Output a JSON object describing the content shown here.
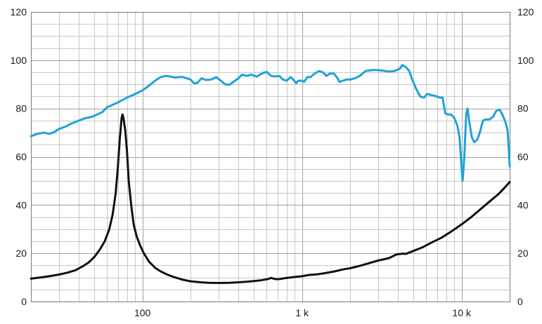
{
  "chart_data": {
    "type": "line",
    "title": "",
    "xlabel": "",
    "ylabel": "",
    "x_scale": "log",
    "xlim": [
      20,
      20000
    ],
    "ylim": [
      0,
      120
    ],
    "grid": true,
    "legend": "none",
    "x_tick_labels": [
      {
        "value": 100,
        "label": "100"
      },
      {
        "value": 1000,
        "label": "1 k"
      },
      {
        "value": 10000,
        "label": "10 k"
      }
    ],
    "y_ticks": [
      0,
      20,
      40,
      60,
      80,
      100,
      120
    ],
    "y_tick_labels": [
      "0",
      "20",
      "40",
      "60",
      "80",
      "100",
      "120"
    ],
    "series": [
      {
        "color": "#1fa3d6",
        "points": [
          [
            20,
            68.5
          ],
          [
            22,
            69.5
          ],
          [
            24,
            70
          ],
          [
            26,
            69.5
          ],
          [
            28,
            70.2
          ],
          [
            30,
            71.5
          ],
          [
            33,
            72.5
          ],
          [
            36,
            73.8
          ],
          [
            40,
            75
          ],
          [
            44,
            76
          ],
          [
            48,
            76.5
          ],
          [
            52,
            77.5
          ],
          [
            56,
            78.5
          ],
          [
            60,
            80.5
          ],
          [
            65,
            81.5
          ],
          [
            70,
            82.5
          ],
          [
            75,
            83.5
          ],
          [
            80,
            84.5
          ],
          [
            90,
            86
          ],
          [
            100,
            87.5
          ],
          [
            110,
            89.5
          ],
          [
            120,
            91.5
          ],
          [
            130,
            93
          ],
          [
            140,
            93.5
          ],
          [
            150,
            93.2
          ],
          [
            160,
            92.8
          ],
          [
            170,
            93
          ],
          [
            180,
            93
          ],
          [
            200,
            92
          ],
          [
            210,
            90.5
          ],
          [
            220,
            90.5
          ],
          [
            235,
            92.5
          ],
          [
            250,
            91.8
          ],
          [
            270,
            92
          ],
          [
            290,
            93
          ],
          [
            310,
            91.5
          ],
          [
            330,
            90
          ],
          [
            350,
            89.8
          ],
          [
            380,
            91.5
          ],
          [
            400,
            92.5
          ],
          [
            420,
            94
          ],
          [
            450,
            93.5
          ],
          [
            480,
            94
          ],
          [
            520,
            93.2
          ],
          [
            560,
            94.5
          ],
          [
            600,
            95.2
          ],
          [
            640,
            93.5
          ],
          [
            680,
            93.2
          ],
          [
            720,
            93.5
          ],
          [
            760,
            92
          ],
          [
            800,
            91.5
          ],
          [
            850,
            93
          ],
          [
            880,
            92
          ],
          [
            920,
            90.5
          ],
          [
            950,
            91.5
          ],
          [
            1000,
            91.5
          ],
          [
            1030,
            91
          ],
          [
            1080,
            93
          ],
          [
            1130,
            93
          ],
          [
            1200,
            94.5
          ],
          [
            1280,
            95.5
          ],
          [
            1350,
            95
          ],
          [
            1420,
            93.5
          ],
          [
            1500,
            94.5
          ],
          [
            1580,
            94.5
          ],
          [
            1650,
            93
          ],
          [
            1720,
            91
          ],
          [
            1800,
            91.5
          ],
          [
            1900,
            92
          ],
          [
            2000,
            92
          ],
          [
            2150,
            92.5
          ],
          [
            2300,
            93.5
          ],
          [
            2500,
            95.5
          ],
          [
            2800,
            96
          ],
          [
            3100,
            95.8
          ],
          [
            3500,
            95.3
          ],
          [
            3800,
            95.5
          ],
          [
            4100,
            96.5
          ],
          [
            4250,
            98
          ],
          [
            4500,
            97
          ],
          [
            4700,
            95.5
          ],
          [
            4900,
            92
          ],
          [
            5200,
            88
          ],
          [
            5500,
            85
          ],
          [
            5800,
            84.5
          ],
          [
            6100,
            86
          ],
          [
            6500,
            85.5
          ],
          [
            7000,
            85
          ],
          [
            7300,
            84.5
          ],
          [
            7600,
            84.5
          ],
          [
            7900,
            78
          ],
          [
            8200,
            77.5
          ],
          [
            8600,
            77.5
          ],
          [
            9000,
            76
          ],
          [
            9400,
            73
          ],
          [
            9700,
            68
          ],
          [
            9950,
            57
          ],
          [
            10150,
            50
          ],
          [
            10400,
            60
          ],
          [
            10700,
            78
          ],
          [
            10900,
            80
          ],
          [
            11200,
            74
          ],
          [
            11600,
            68
          ],
          [
            12000,
            66
          ],
          [
            12500,
            67
          ],
          [
            13000,
            70
          ],
          [
            13600,
            75
          ],
          [
            14200,
            75.5
          ],
          [
            15000,
            75.5
          ],
          [
            15700,
            76.5
          ],
          [
            16500,
            79
          ],
          [
            17300,
            79.5
          ],
          [
            18000,
            77.5
          ],
          [
            18800,
            74.5
          ],
          [
            19400,
            71
          ],
          [
            19800,
            62
          ],
          [
            20000,
            56
          ]
        ]
      },
      {
        "color": "#111111",
        "points": [
          [
            20,
            9.5
          ],
          [
            23,
            10
          ],
          [
            26,
            10.5
          ],
          [
            30,
            11.2
          ],
          [
            34,
            12
          ],
          [
            38,
            13
          ],
          [
            42,
            14.5
          ],
          [
            46,
            16.2
          ],
          [
            50,
            18.5
          ],
          [
            54,
            21.5
          ],
          [
            58,
            25
          ],
          [
            62,
            30
          ],
          [
            65,
            36
          ],
          [
            68,
            45
          ],
          [
            70,
            55
          ],
          [
            72,
            67
          ],
          [
            74,
            76
          ],
          [
            75,
            77.5
          ],
          [
            76,
            76
          ],
          [
            78,
            71
          ],
          [
            80,
            62
          ],
          [
            82,
            50
          ],
          [
            85,
            40
          ],
          [
            88,
            32
          ],
          [
            92,
            27
          ],
          [
            97,
            23
          ],
          [
            102,
            20
          ],
          [
            110,
            16.5
          ],
          [
            120,
            14
          ],
          [
            130,
            12.5
          ],
          [
            145,
            11
          ],
          [
            160,
            10
          ],
          [
            180,
            9
          ],
          [
            200,
            8.4
          ],
          [
            230,
            8
          ],
          [
            260,
            7.8
          ],
          [
            300,
            7.7
          ],
          [
            350,
            7.8
          ],
          [
            400,
            8
          ],
          [
            450,
            8.2
          ],
          [
            500,
            8.5
          ],
          [
            550,
            8.8
          ],
          [
            600,
            9.2
          ],
          [
            640,
            9.8
          ],
          [
            680,
            9.3
          ],
          [
            720,
            9.3
          ],
          [
            780,
            9.7
          ],
          [
            850,
            10
          ],
          [
            920,
            10.3
          ],
          [
            1000,
            10.5
          ],
          [
            1100,
            11
          ],
          [
            1250,
            11.3
          ],
          [
            1400,
            11.8
          ],
          [
            1600,
            12.5
          ],
          [
            1800,
            13.3
          ],
          [
            2000,
            13.8
          ],
          [
            2300,
            14.8
          ],
          [
            2600,
            15.8
          ],
          [
            3000,
            17
          ],
          [
            3500,
            18
          ],
          [
            3900,
            19.5
          ],
          [
            4200,
            19.8
          ],
          [
            4500,
            19.8
          ],
          [
            5000,
            21
          ],
          [
            5700,
            22.5
          ],
          [
            6500,
            24.5
          ],
          [
            7500,
            26.5
          ],
          [
            8600,
            29
          ],
          [
            10000,
            32
          ],
          [
            11500,
            35
          ],
          [
            13000,
            38
          ],
          [
            15000,
            41.5
          ],
          [
            17000,
            44.5
          ],
          [
            18500,
            47
          ],
          [
            20000,
            49.5
          ]
        ]
      }
    ]
  }
}
